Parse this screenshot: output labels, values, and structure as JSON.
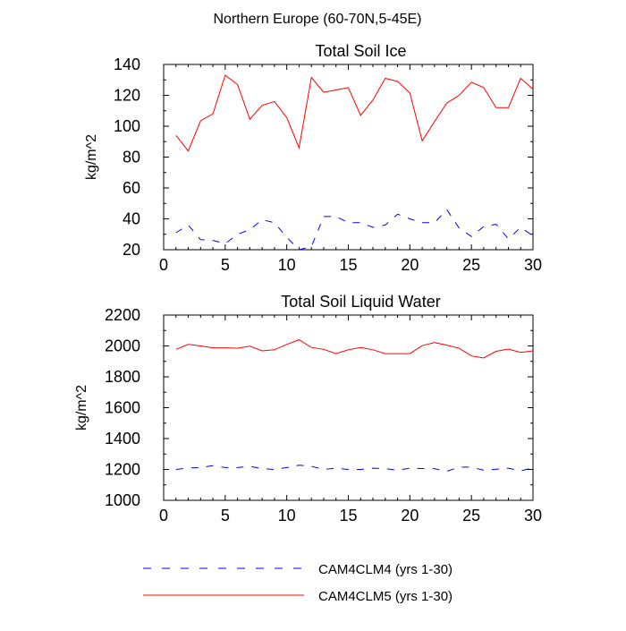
{
  "suptitle": "Northern Europe (60-70N,5-45E)",
  "chart_data": [
    {
      "type": "line",
      "title": "Total Soil Ice",
      "xlabel": "",
      "ylabel": "kg/m^2",
      "xlim": [
        0,
        30
      ],
      "ylim": [
        20,
        140
      ],
      "xticks": [
        0,
        5,
        10,
        15,
        20,
        25,
        30
      ],
      "yticks": [
        20,
        40,
        60,
        80,
        100,
        120,
        140
      ],
      "x": [
        1,
        2,
        3,
        4,
        5,
        6,
        7,
        8,
        9,
        10,
        11,
        12,
        13,
        14,
        15,
        16,
        17,
        18,
        19,
        20,
        21,
        22,
        23,
        24,
        25,
        26,
        27,
        28,
        29,
        30
      ],
      "series": [
        {
          "name": "CAM4CLM4 (yrs 1-30)",
          "color": "#0000ff",
          "dash": "dashed",
          "values": [
            31,
            36,
            26.5,
            26,
            24,
            30,
            33,
            39.5,
            37.5,
            28,
            20,
            22,
            41.5,
            41.5,
            37.5,
            37.5,
            34.5,
            36,
            43,
            40,
            37.5,
            37.5,
            46,
            34,
            28.5,
            35,
            36.5,
            27,
            34.5,
            29
          ]
        },
        {
          "name": "CAM4CLM5 (yrs 1-30)",
          "color": "#ff0000",
          "dash": "solid",
          "values": [
            94,
            84,
            103.5,
            108,
            133,
            127,
            104.5,
            113.5,
            116,
            105.5,
            86,
            131.5,
            122,
            123.5,
            125,
            107,
            117,
            131,
            129,
            121.5,
            90.5,
            103,
            115,
            120,
            128.5,
            125,
            112,
            112,
            131,
            124
          ]
        }
      ]
    },
    {
      "type": "line",
      "title": "Total Soil Liquid Water",
      "xlabel": "",
      "ylabel": "kg/m^2",
      "xlim": [
        0,
        30
      ],
      "ylim": [
        1000,
        2200
      ],
      "xticks": [
        0,
        5,
        10,
        15,
        20,
        25,
        30
      ],
      "yticks": [
        1000,
        1200,
        1400,
        1600,
        1800,
        2000,
        2200
      ],
      "x": [
        1,
        2,
        3,
        4,
        5,
        6,
        7,
        8,
        9,
        10,
        11,
        12,
        13,
        14,
        15,
        16,
        17,
        18,
        19,
        20,
        21,
        22,
        23,
        24,
        25,
        26,
        27,
        28,
        29,
        30
      ],
      "series": [
        {
          "name": "CAM4CLM4 (yrs 1-30)",
          "color": "#0000ff",
          "dash": "dashed",
          "values": [
            1200,
            1210,
            1212,
            1225,
            1212,
            1212,
            1220,
            1205,
            1200,
            1212,
            1228,
            1220,
            1200,
            1208,
            1200,
            1200,
            1208,
            1205,
            1195,
            1208,
            1206,
            1205,
            1188,
            1215,
            1215,
            1195,
            1202,
            1208,
            1190,
            1212
          ]
        },
        {
          "name": "CAM4CLM5 (yrs 1-30)",
          "color": "#ff0000",
          "dash": "solid",
          "values": [
            1978,
            2010,
            2000,
            1988,
            1988,
            1985,
            1998,
            1968,
            1975,
            2010,
            2040,
            1990,
            1978,
            1950,
            1975,
            1990,
            1975,
            1950,
            1950,
            1950,
            2002,
            2022,
            2005,
            1985,
            1935,
            1922,
            1965,
            1980,
            1958,
            1968
          ]
        }
      ]
    }
  ]
}
